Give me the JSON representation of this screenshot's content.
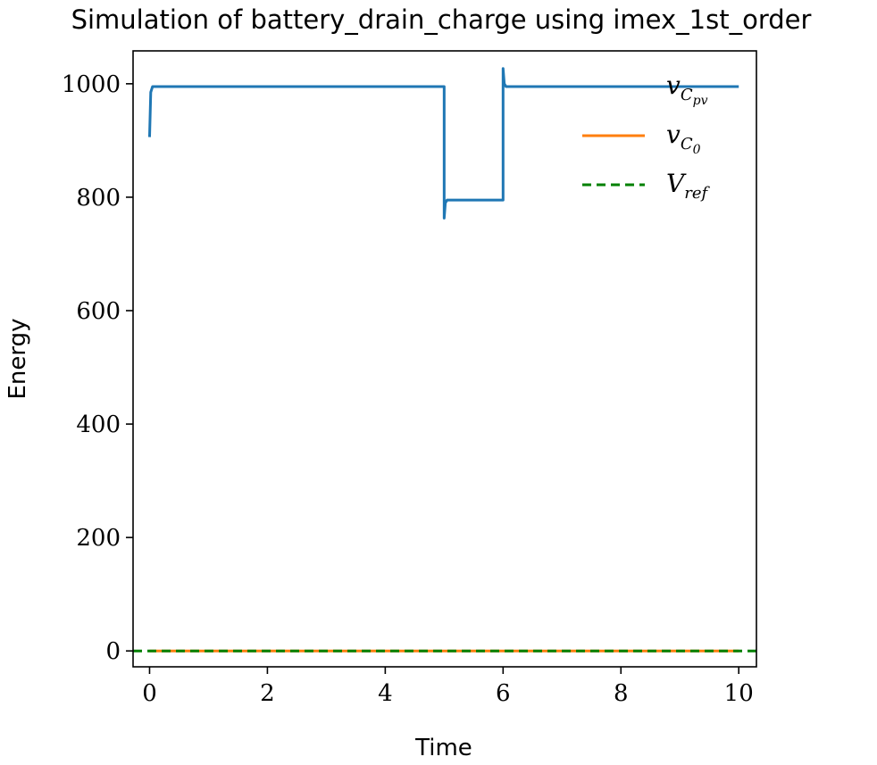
{
  "chart_data": {
    "type": "line",
    "title": "Simulation of battery_drain_charge using imex_1st_order",
    "xlabel": "Time",
    "ylabel": "Energy",
    "xlim": [
      -0.28,
      10.3
    ],
    "ylim": [
      -28,
      1058
    ],
    "xticks": [
      0,
      2,
      4,
      6,
      8,
      10
    ],
    "yticks": [
      0,
      200,
      400,
      600,
      800,
      1000
    ],
    "grid": false,
    "legend_position": "top-right",
    "series": [
      {
        "name": "v_{C_{pv}}",
        "name_main": "v",
        "name_sub": "C",
        "name_subsub": "pv",
        "color": "#1f77b4",
        "style": "solid",
        "x": [
          0.0,
          0.02,
          0.05,
          4.99,
          5.0,
          5.0,
          5.02,
          5.05,
          5.99,
          6.0,
          6.0,
          6.02,
          6.05,
          10.0
        ],
        "y": [
          906,
          985,
          995,
          995,
          995,
          763,
          790,
          795,
          795,
          795,
          1027,
          1000,
          995,
          995
        ]
      },
      {
        "name": "v_{C_0}",
        "name_main": "v",
        "name_sub": "C",
        "name_subsub": "0",
        "color": "#ff7f0e",
        "style": "solid",
        "x": [
          0.0,
          10.0
        ],
        "y": [
          0,
          0
        ]
      },
      {
        "name": "V_{ref}",
        "name_main": "V",
        "name_sub": "ref",
        "name_subsub": "",
        "color": "#008000",
        "style": "dashed",
        "x": [
          -0.28,
          10.3
        ],
        "y": [
          0,
          0
        ]
      }
    ]
  }
}
